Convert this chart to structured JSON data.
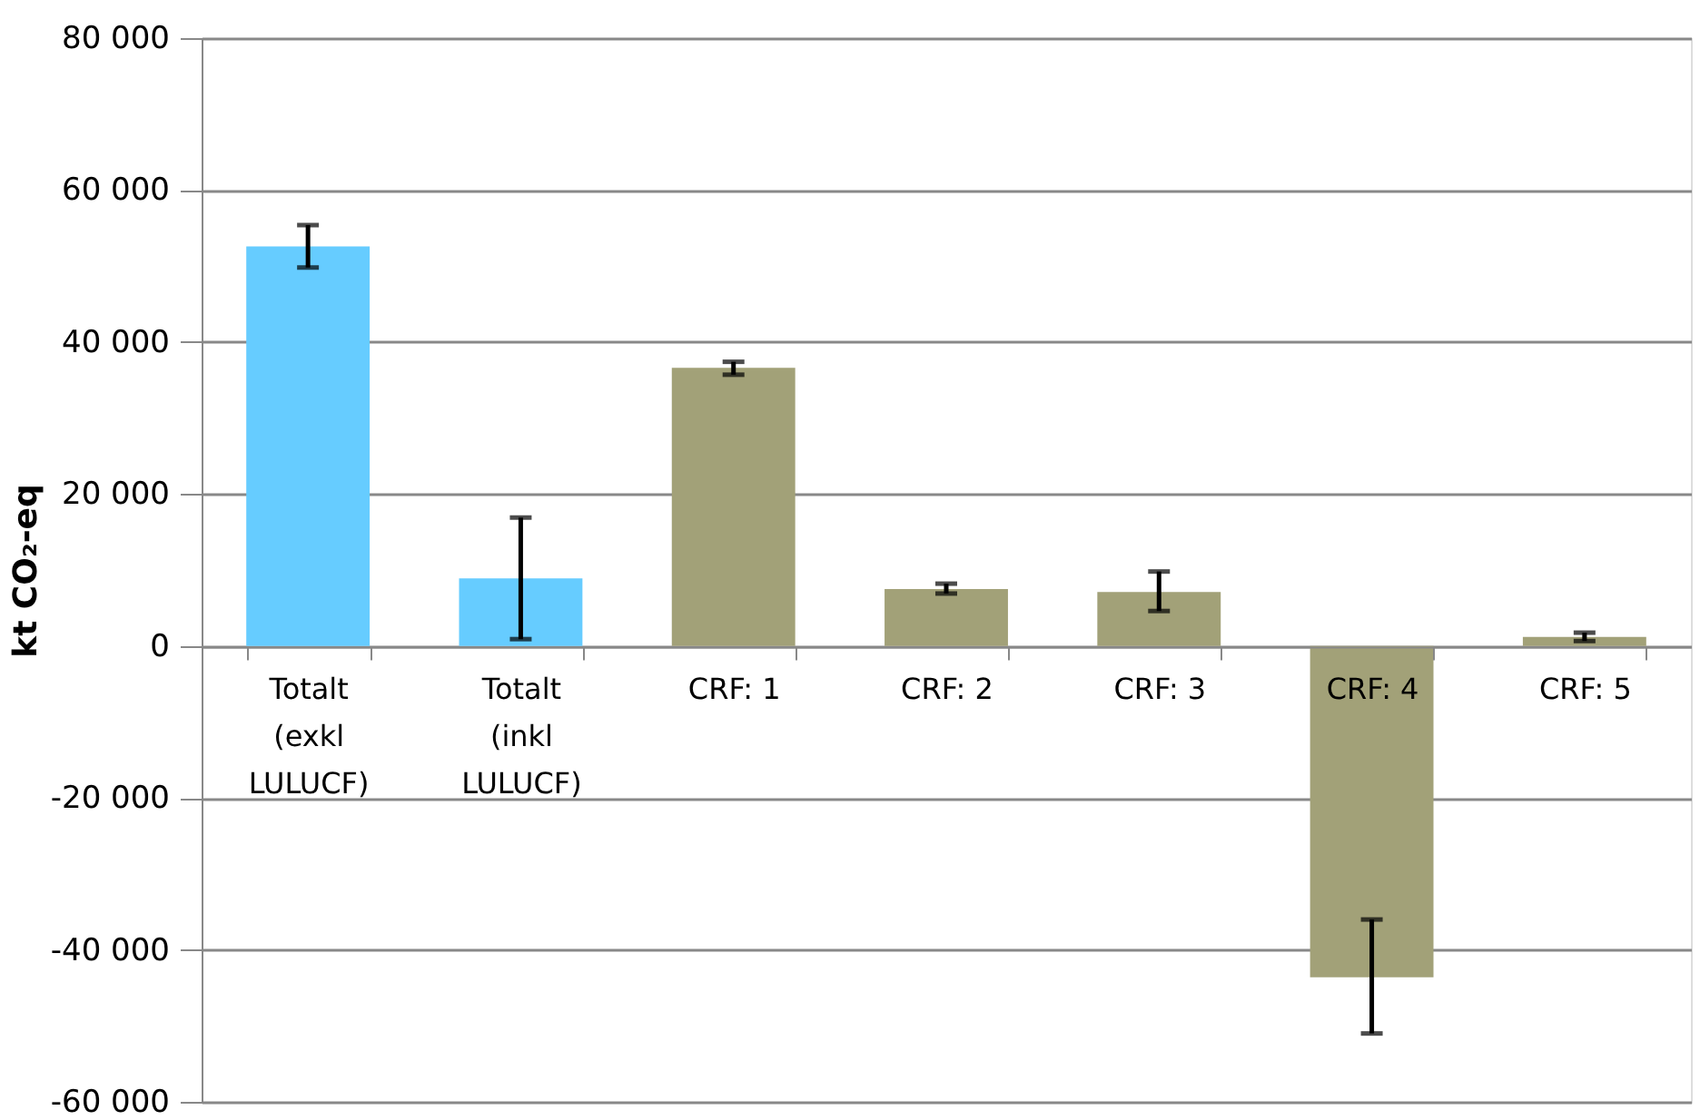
{
  "chart_data": {
    "type": "bar",
    "ylabel": "kt CO₂-eq",
    "categories": [
      "Totalt (exkl LULUCF)",
      "Totalt (inkl LULUCF)",
      "CRF: 1",
      "CRF: 2",
      "CRF: 3",
      "CRF: 4",
      "CRF: 5"
    ],
    "values": [
      52600,
      8900,
      36600,
      7500,
      7100,
      -43600,
      1200
    ],
    "colors": [
      "#66ccff",
      "#66ccff",
      "#a2a178",
      "#a2a178",
      "#a2a178",
      "#a2a178",
      "#a2a178"
    ],
    "errors": [
      [
        49800,
        55400
      ],
      [
        900,
        16900
      ],
      [
        35700,
        37400
      ],
      [
        6900,
        8200
      ],
      [
        4600,
        9800
      ],
      [
        -51000,
        -36000
      ],
      [
        650,
        1750
      ]
    ],
    "ylim": [
      -60000,
      80000
    ],
    "yticks": [
      {
        "value": -60000,
        "label": "-60 000"
      },
      {
        "value": -40000,
        "label": "-40 000"
      },
      {
        "value": -20000,
        "label": "-20 000"
      },
      0,
      {
        "value": 20000,
        "label": "20 000"
      },
      {
        "value": 40000,
        "label": "40 000"
      },
      {
        "value": 60000,
        "label": "60 000"
      },
      {
        "value": 80000,
        "label": "80 000"
      }
    ],
    "grid": "y"
  }
}
